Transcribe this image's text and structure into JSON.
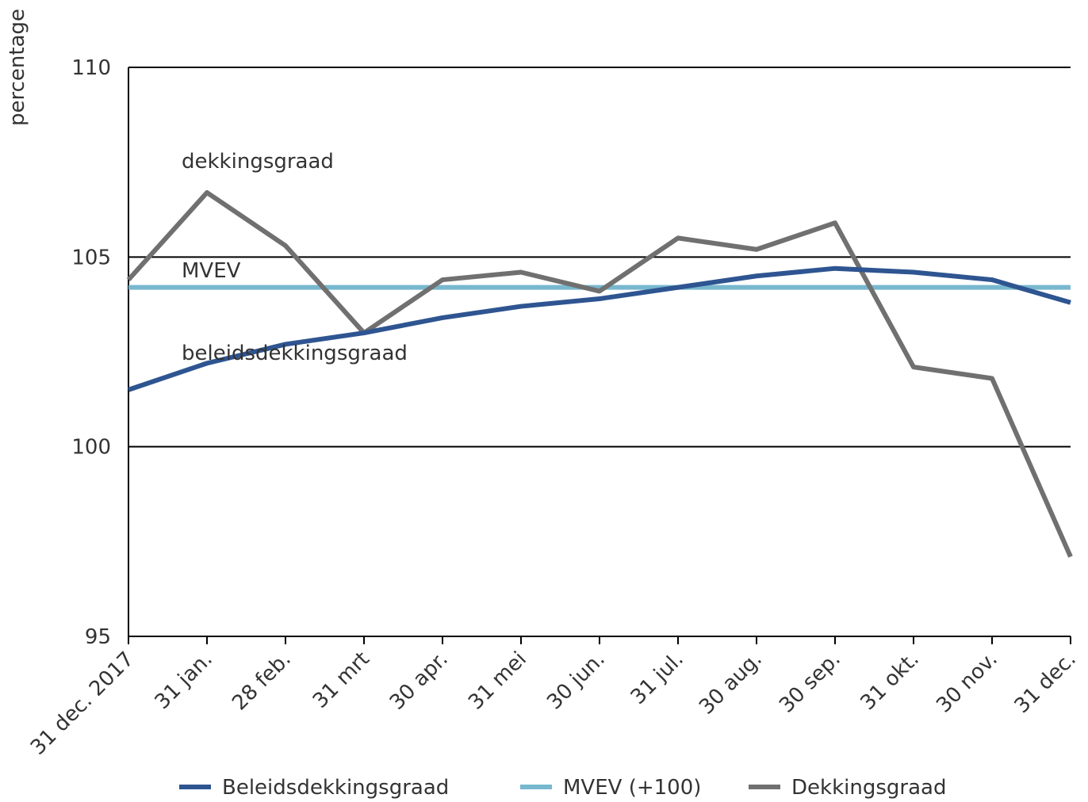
{
  "chart_data": {
    "type": "line",
    "y_label": "percentage",
    "categories": [
      "31 dec. 2017",
      "31 jan.",
      "28 feb.",
      "31 mrt",
      "30 apr.",
      "31 mei",
      "30 jun.",
      "31 jul.",
      "30 aug.",
      "30 sep.",
      "31 okt.",
      "30 nov.",
      "31 dec."
    ],
    "series": [
      {
        "name": "Beleidsdekkingsgraad",
        "color": "#2e5591",
        "values": [
          101.5,
          102.2,
          102.7,
          103.0,
          103.4,
          103.7,
          103.9,
          104.2,
          104.5,
          104.7,
          104.6,
          104.4,
          103.8
        ]
      },
      {
        "name": "MVEV (+100)",
        "color": "#78b8cf",
        "values": [
          104.2,
          104.2,
          104.2,
          104.2,
          104.2,
          104.2,
          104.2,
          104.2,
          104.2,
          104.2,
          104.2,
          104.2,
          104.2
        ]
      },
      {
        "name": "Dekkingsgraad",
        "color": "#707070",
        "values": [
          104.4,
          106.7,
          105.3,
          103.0,
          104.4,
          104.6,
          104.1,
          105.5,
          105.2,
          105.9,
          102.1,
          101.8,
          97.1
        ]
      }
    ],
    "annotations": [
      "dekkingsgraad",
      "MVEV",
      "beleidsdekkingsgraad"
    ],
    "ylim": [
      95,
      110
    ],
    "yticks": [
      95,
      100,
      105,
      110
    ],
    "grid": true,
    "legend": "bottom"
  }
}
